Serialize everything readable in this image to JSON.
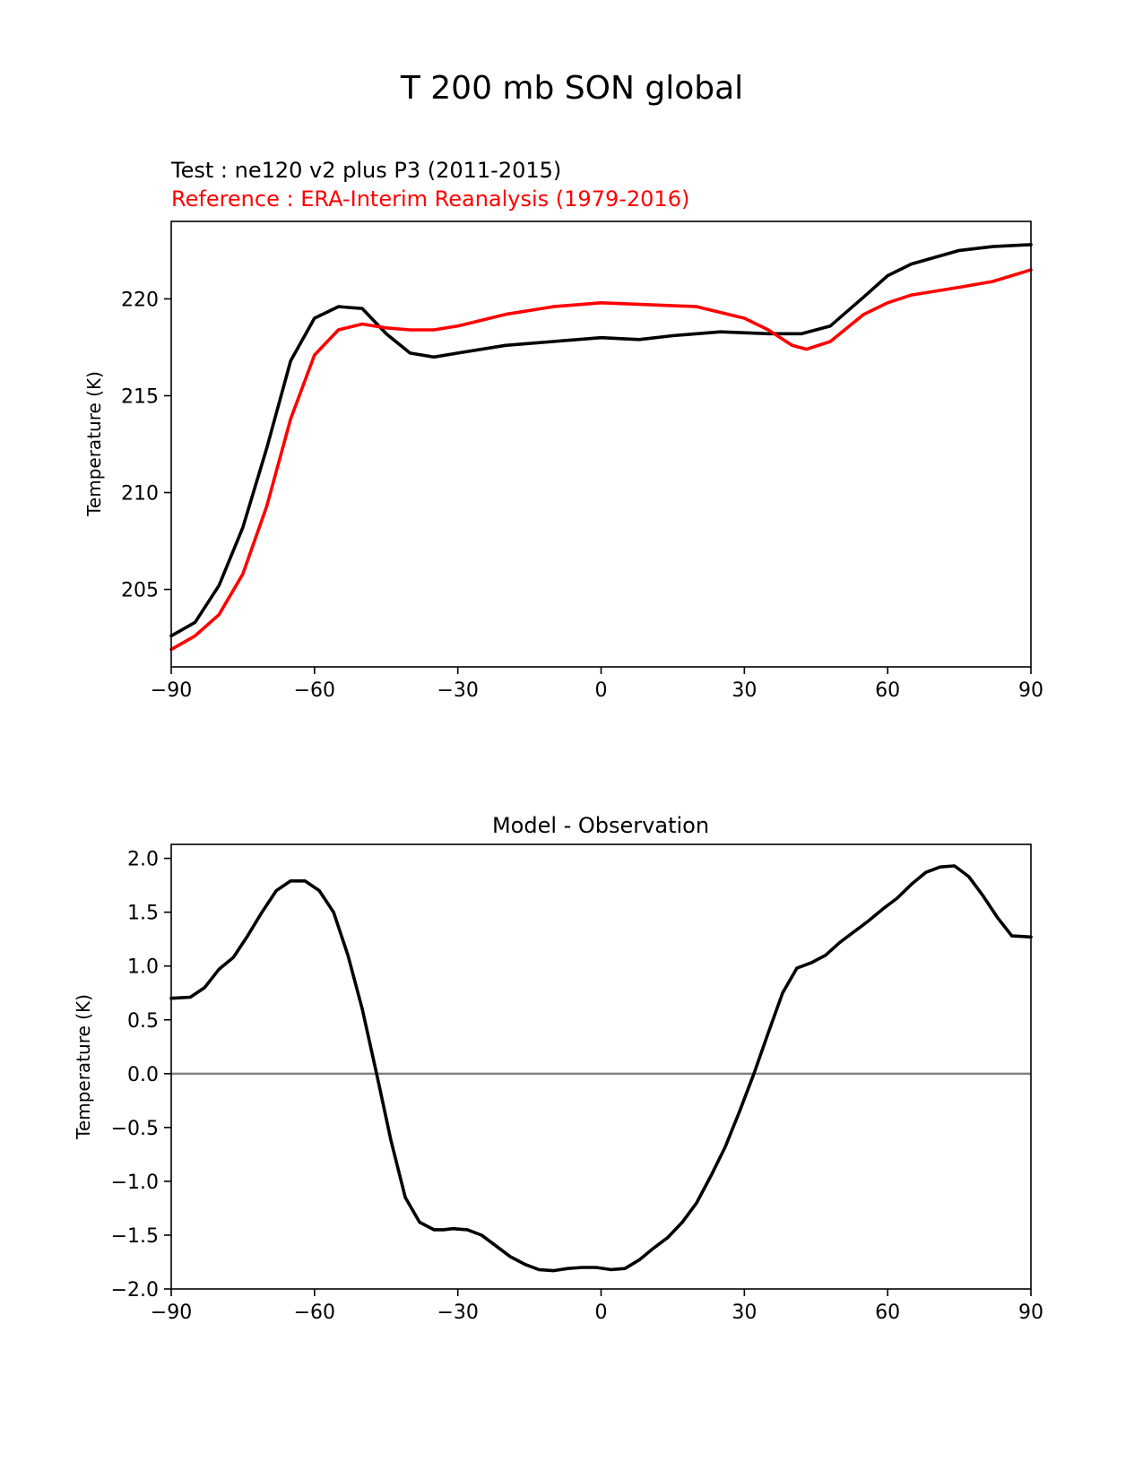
{
  "figure": {
    "title": "T 200 mb SON global"
  },
  "chart_data": [
    {
      "type": "line",
      "title_lines": [
        {
          "text": "Test : ne120 v2 plus P3 (2011-2015)",
          "color": "#000000"
        },
        {
          "text": "Reference : ERA-Interim Reanalysis (1979-2016)",
          "color": "#ff0000"
        }
      ],
      "xlabel": "",
      "ylabel": "Temperature (K)",
      "xlim": [
        -90,
        90
      ],
      "ylim": [
        201,
        224
      ],
      "xticks": [
        -90,
        -60,
        -30,
        0,
        30,
        60,
        90
      ],
      "xtick_labels": [
        "−90",
        "−60",
        "−30",
        "0",
        "30",
        "60",
        "90"
      ],
      "yticks": [
        205,
        210,
        215,
        220
      ],
      "ytick_labels": [
        "205",
        "210",
        "215",
        "220"
      ],
      "grid": false,
      "series": [
        {
          "color": "#000000",
          "x": [
            -90,
            -85,
            -80,
            -75,
            -70,
            -65,
            -60,
            -55,
            -50,
            -45,
            -40,
            -35,
            -30,
            -20,
            -10,
            0,
            8,
            15,
            25,
            35,
            42,
            48,
            55,
            60,
            65,
            75,
            82,
            90
          ],
          "y": [
            202.6,
            203.3,
            205.2,
            208.2,
            212.3,
            216.8,
            219.0,
            219.6,
            219.5,
            218.2,
            217.2,
            217.0,
            217.2,
            217.6,
            217.8,
            218.0,
            217.9,
            218.1,
            218.3,
            218.2,
            218.2,
            218.6,
            220.1,
            221.2,
            221.8,
            222.5,
            222.7,
            222.8
          ]
        },
        {
          "color": "#ff0000",
          "x": [
            -90,
            -85,
            -80,
            -75,
            -70,
            -65,
            -60,
            -55,
            -50,
            -45,
            -40,
            -35,
            -30,
            -20,
            -10,
            0,
            10,
            20,
            30,
            35,
            40,
            43,
            48,
            55,
            60,
            65,
            75,
            82,
            90
          ],
          "y": [
            201.9,
            202.6,
            203.7,
            205.8,
            209.3,
            213.8,
            217.1,
            218.4,
            218.7,
            218.5,
            218.4,
            218.4,
            218.6,
            219.2,
            219.6,
            219.8,
            219.7,
            219.6,
            219.0,
            218.4,
            217.6,
            217.4,
            217.8,
            219.2,
            219.8,
            220.2,
            220.6,
            220.9,
            221.5
          ]
        }
      ]
    },
    {
      "type": "line",
      "title": "Model - Observation",
      "xlabel": "",
      "ylabel": "Temperature (K)",
      "xlim": [
        -90,
        90
      ],
      "ylim": [
        -2.0,
        2.13
      ],
      "xticks": [
        -90,
        -60,
        -30,
        0,
        30,
        60,
        90
      ],
      "xtick_labels": [
        "−90",
        "−60",
        "−30",
        "0",
        "30",
        "60",
        "90"
      ],
      "yticks": [
        -2.0,
        -1.5,
        -1.0,
        -0.5,
        0.0,
        0.5,
        1.0,
        1.5,
        2.0
      ],
      "ytick_labels": [
        "−2.0",
        "−1.5",
        "−1.0",
        "−0.5",
        "0.0",
        "0.5",
        "1.0",
        "1.5",
        "2.0"
      ],
      "grid": false,
      "zero_line": {
        "y": 0,
        "color": "#808080"
      },
      "series": [
        {
          "color": "#000000",
          "x": [
            -90,
            -86,
            -83,
            -80,
            -77,
            -74,
            -71,
            -68,
            -65,
            -62,
            -59,
            -56,
            -53,
            -50,
            -47,
            -44,
            -41,
            -38,
            -35,
            -33,
            -31,
            -28,
            -25,
            -22,
            -19,
            -16,
            -13,
            -10,
            -7,
            -4,
            -1,
            2,
            5,
            8,
            11,
            14,
            17,
            20,
            23,
            26,
            29,
            32,
            35,
            38,
            41,
            44,
            47,
            50,
            53,
            56,
            59,
            62,
            65,
            68,
            71,
            74,
            77,
            80,
            83,
            86,
            90
          ],
          "y": [
            0.7,
            0.71,
            0.8,
            0.97,
            1.08,
            1.28,
            1.5,
            1.7,
            1.79,
            1.79,
            1.7,
            1.5,
            1.1,
            0.6,
            0.0,
            -0.62,
            -1.15,
            -1.38,
            -1.45,
            -1.45,
            -1.44,
            -1.45,
            -1.5,
            -1.6,
            -1.7,
            -1.77,
            -1.82,
            -1.83,
            -1.81,
            -1.8,
            -1.8,
            -1.82,
            -1.81,
            -1.73,
            -1.62,
            -1.52,
            -1.38,
            -1.2,
            -0.95,
            -0.68,
            -0.35,
            0.0,
            0.38,
            0.75,
            0.98,
            1.03,
            1.1,
            1.22,
            1.32,
            1.42,
            1.53,
            1.63,
            1.76,
            1.87,
            1.92,
            1.93,
            1.83,
            1.65,
            1.45,
            1.28,
            1.27
          ]
        }
      ]
    }
  ]
}
